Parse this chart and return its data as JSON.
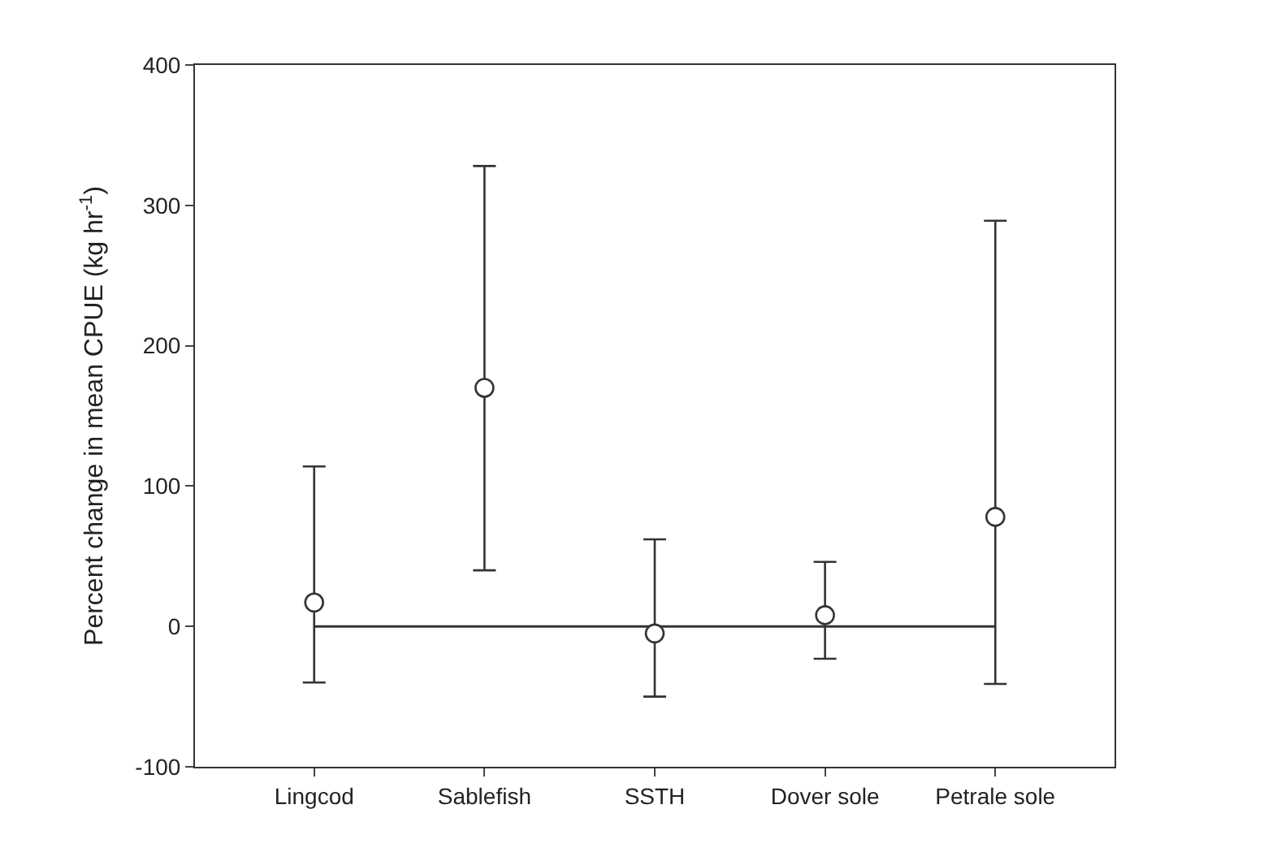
{
  "chart_data": {
    "type": "scatter",
    "ylabel": "Percent change in mean CPUE (kg hr$^{-1}$)",
    "categories": [
      "Lingcod",
      "Sablefish",
      "SSTH",
      "Dover sole",
      "Petrale sole"
    ],
    "series": [
      {
        "color": "#333333",
        "values": [
          17,
          170,
          -5,
          8,
          78
        ],
        "errors": [
          [
            -40,
            114
          ],
          [
            40,
            328
          ],
          [
            -50,
            62
          ],
          [
            -23,
            46
          ],
          [
            -41,
            289
          ]
        ]
      }
    ],
    "ylim": [
      -100,
      400
    ],
    "yticks": [
      -100,
      0,
      100,
      200,
      300,
      400
    ],
    "ref_lines": [
      {
        "axis": "y",
        "value": 0,
        "color": "#333333"
      }
    ],
    "marker": "circle",
    "grid": false,
    "legend": false
  }
}
